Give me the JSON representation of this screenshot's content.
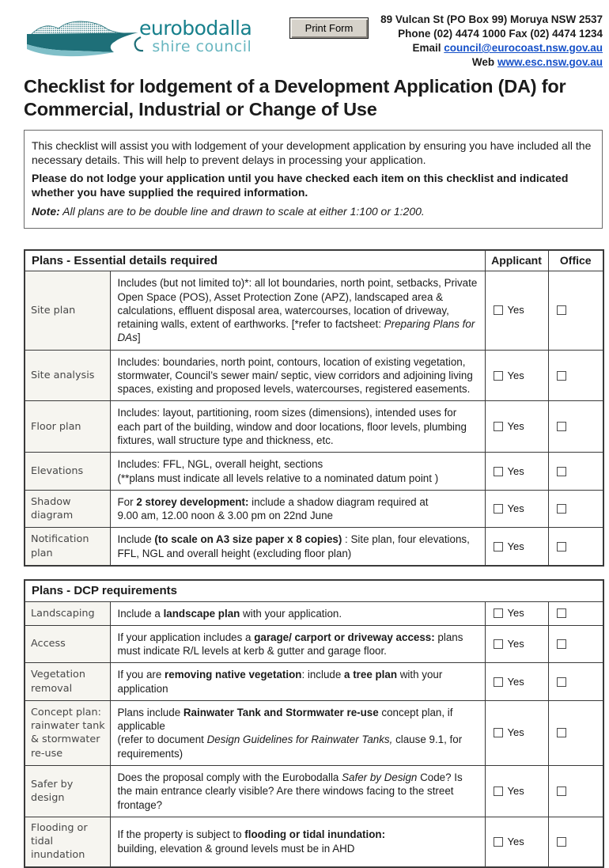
{
  "colors": {
    "brand_teal_dark": "#1E6F78",
    "brand_teal_light": "#7FBFC8",
    "logo_text_dark": "#17808C",
    "logo_text_light": "#68B6C0",
    "link_blue": "#1550C8",
    "table_border": "#3A3A3A",
    "label_cell_bg": "#F6F5F0",
    "button_gray": "#D6D2CA"
  },
  "header": {
    "logo_line1": "eurobodalla",
    "logo_line2": "shire council",
    "print_button_label": "Print Form",
    "address_line": "89 Vulcan St (PO Box 99) Moruya NSW 2537",
    "phone_fax_line": "Phone (02) 4474 1000  Fax (02) 4474 1234",
    "email_label": "Email",
    "email_link": "council@eurocoast.nsw.gov.au",
    "web_label": "Web",
    "web_link": "www.esc.nsw.gov.au"
  },
  "title": "Checklist for lodgement of a Development Application (DA) for Commercial, Industrial or Change of Use",
  "intro": {
    "paragraph1": "This checklist will assist you with lodgement of your development application by ensuring you have included all the necessary details. This will help to prevent delays in processing your application.",
    "paragraph2": "Please do not lodge your application until you have checked each item on this checklist and indicated whether you have supplied the required information.",
    "note_label": "Note:",
    "note_text": " All plans are to be double line and drawn to scale at either 1:100 or 1:200."
  },
  "checkbox_label": "Yes",
  "tables": [
    {
      "title": "Plans - Essential details required",
      "col_applicant": "Applicant",
      "col_office": "Office",
      "rows": [
        {
          "label": "Site plan",
          "desc": [
            {
              "t": "Includes (but not limited to)*:  all lot boundaries, north point, setbacks, Private Open Space (POS), Asset Protection Zone (APZ), landscaped area & calculations, effluent disposal area, watercourses, location of driveway, retaining walls, extent of earthworks.  [*refer to factsheet: "
            },
            {
              "t": "Preparing Plans for DAs",
              "i": true
            },
            {
              "t": "]"
            }
          ]
        },
        {
          "label": "Site analysis",
          "desc": [
            {
              "t": "Includes:  boundaries, north point, contours, location of existing vegetation, stormwater, Council’s sewer main/ septic, view corridors and adjoining living spaces, existing and proposed levels, watercourses, registered easements."
            }
          ]
        },
        {
          "label": "Floor plan",
          "desc": [
            {
              "t": "Includes: layout, partitioning, room sizes (dimensions), intended uses for each part of the building, window and door locations, floor levels, plumbing fixtures, wall structure type and thickness, etc."
            }
          ]
        },
        {
          "label": "Elevations",
          "desc": [
            {
              "t": "Includes: FFL, NGL, overall height, sections"
            },
            {
              "br": true
            },
            {
              "t": "(**plans must indicate all levels relative to a nominated datum point )"
            }
          ]
        },
        {
          "label": "Shadow diagram",
          "desc": [
            {
              "t": "For "
            },
            {
              "t": "2 storey development:",
              "b": true
            },
            {
              "t": " include a shadow diagram required at"
            },
            {
              "br": true
            },
            {
              "t": "9.00 am, 12.00 noon & 3.00 pm on 22nd June"
            }
          ]
        },
        {
          "label": "Notification plan",
          "desc": [
            {
              "t": "Include "
            },
            {
              "t": "(to scale on A3 size paper x 8 copies)",
              "b": true
            },
            {
              "t": " : Site plan, four elevations, FFL, NGL and overall height (excluding floor plan)"
            }
          ]
        }
      ]
    },
    {
      "title": "Plans - DCP requirements",
      "rows": [
        {
          "label": "Landscaping",
          "desc": [
            {
              "t": "Include a "
            },
            {
              "t": "landscape plan",
              "b": true
            },
            {
              "t": " with your application."
            }
          ]
        },
        {
          "label": "Access",
          "desc": [
            {
              "t": "If your application includes a "
            },
            {
              "t": "garage/ carport or driveway access:",
              "b": true
            },
            {
              "t": " plans must indicate R/L levels at kerb & gutter and garage floor."
            }
          ]
        },
        {
          "label": "Vegetation removal",
          "desc": [
            {
              "t": "If you are "
            },
            {
              "t": "removing native vegetation",
              "b": true
            },
            {
              "t": ": include "
            },
            {
              "t": "a tree plan",
              "b": true
            },
            {
              "t": " with your application"
            }
          ]
        },
        {
          "label": "Concept plan: rainwater tank & stormwater re-use",
          "desc": [
            {
              "t": "Plans include "
            },
            {
              "t": "Rainwater Tank and Stormwater re-use",
              "b": true
            },
            {
              "t": " concept plan, if applicable"
            },
            {
              "br": true
            },
            {
              "t": "(refer to document "
            },
            {
              "t": "Design Guidelines for Rainwater Tanks,",
              "i": true
            },
            {
              "t": " clause 9.1, for requirements)"
            }
          ]
        },
        {
          "label": "Safer by design",
          "desc": [
            {
              "t": "Does the proposal comply with the Eurobodalla "
            },
            {
              "t": "Safer by Design",
              "i": true
            },
            {
              "t": " Code? Is the main entrance clearly visible? Are there windows facing to the street frontage?"
            }
          ]
        },
        {
          "label": "Flooding or tidal inundation",
          "desc": [
            {
              "t": "If the property is subject to "
            },
            {
              "t": "flooding or tidal inundation:",
              "b": true
            },
            {
              "br": true
            },
            {
              "t": "building, elevation & ground levels must be in AHD"
            }
          ]
        }
      ]
    }
  ]
}
